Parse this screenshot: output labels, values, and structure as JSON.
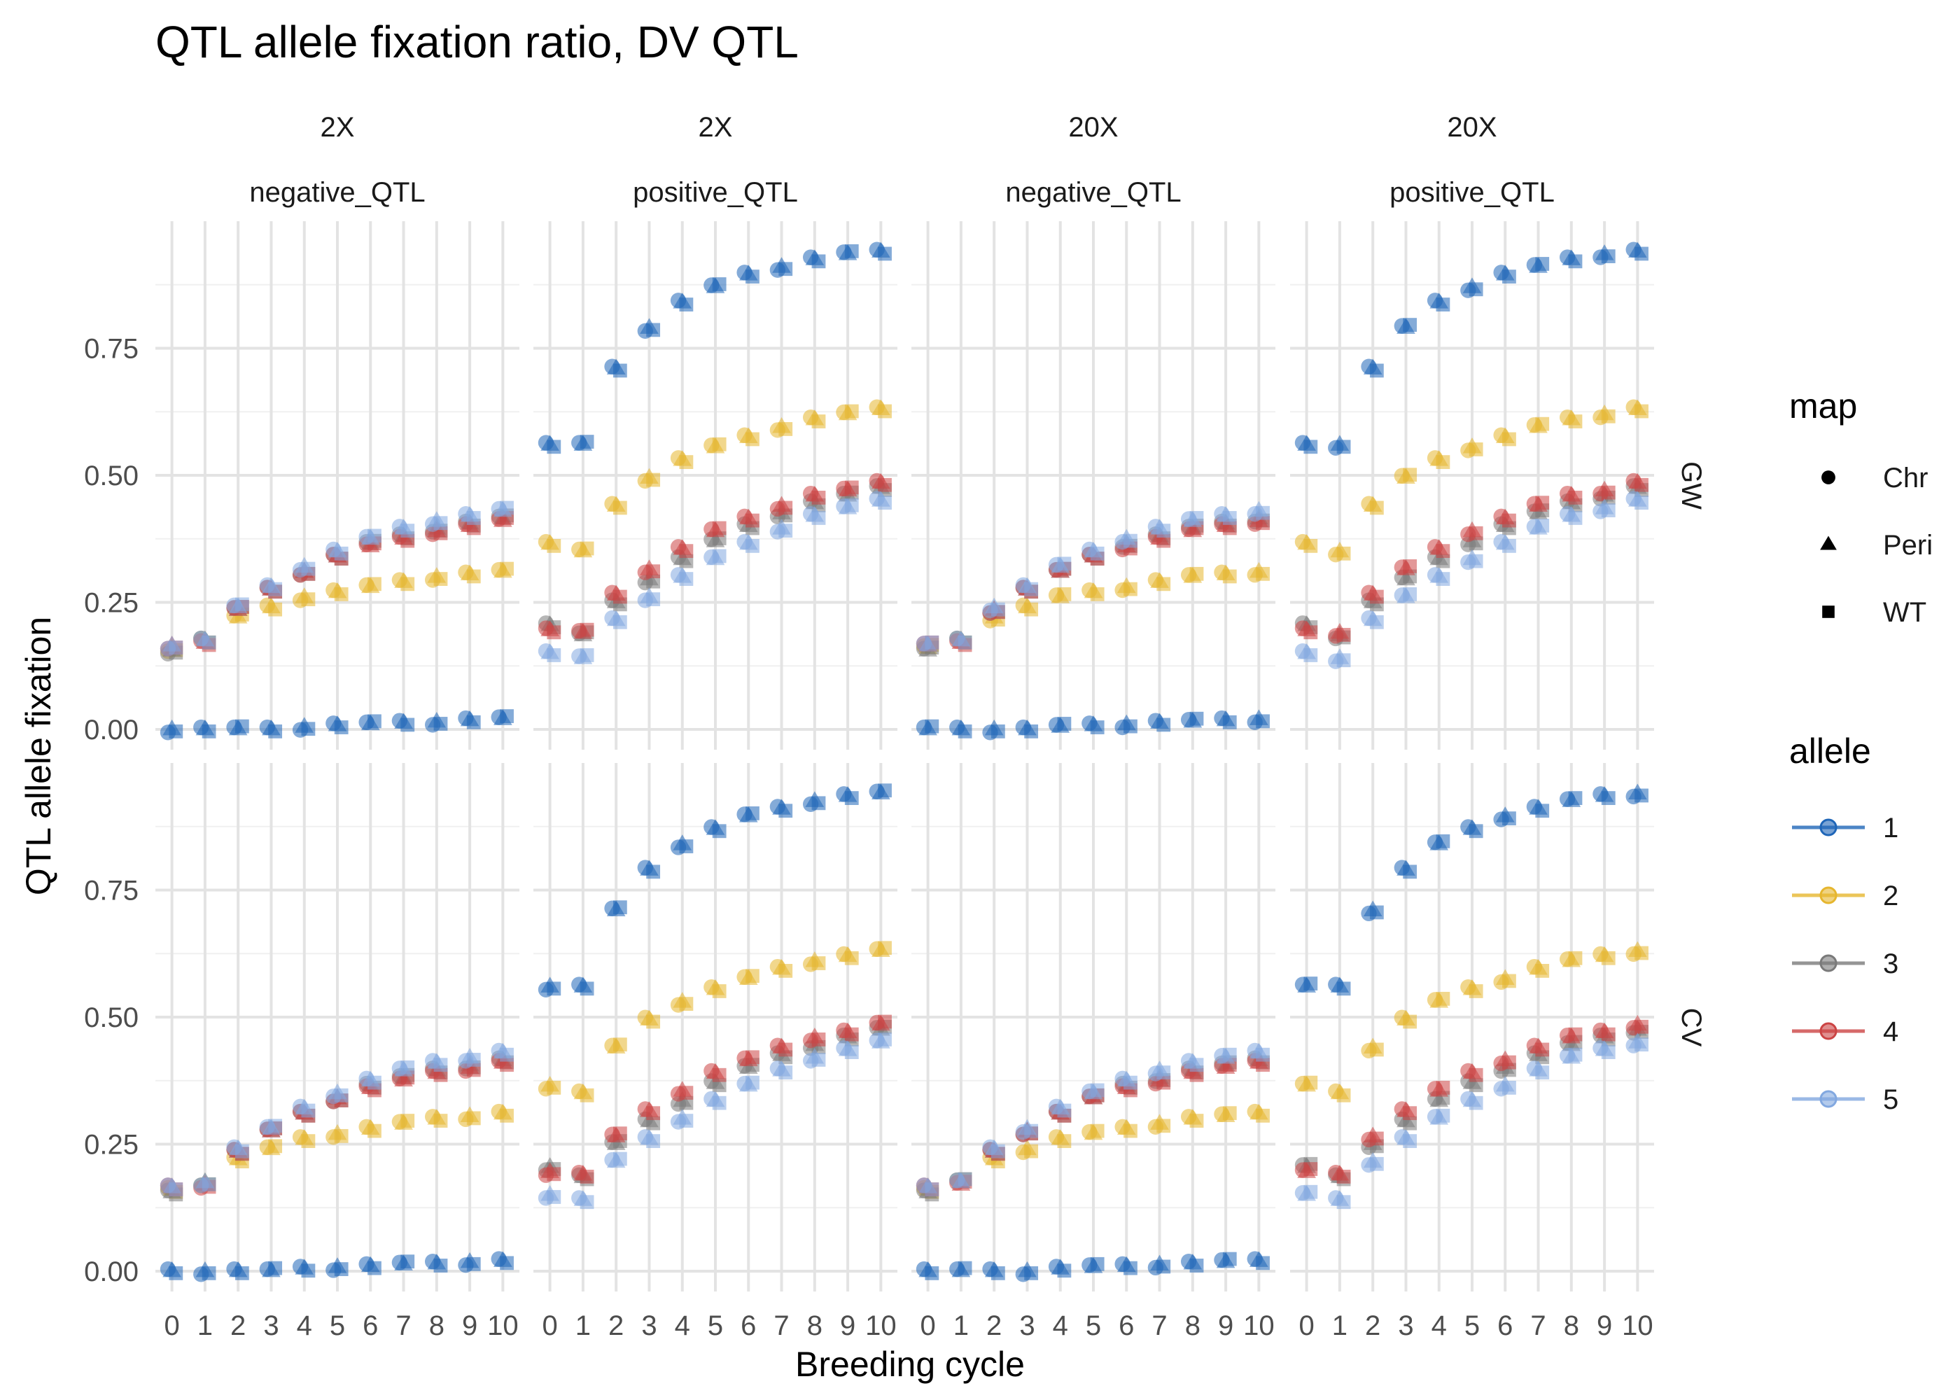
{
  "chart_data": {
    "type": "scatter",
    "title": "QTL allele fixation ratio, DV QTL",
    "xlabel": "Breeding cycle",
    "ylabel": "QTL allele fixation",
    "x_ticks": [
      "0",
      "1",
      "2",
      "3",
      "4",
      "5",
      "6",
      "7",
      "8",
      "9",
      "10"
    ],
    "y_ticks": [
      "0.00",
      "0.25",
      "0.50",
      "0.75"
    ],
    "xlim": [
      -0.5,
      10.5
    ],
    "ylim": [
      -0.04,
      1.0
    ],
    "grid": true,
    "legend_position": "right",
    "column_strips": [
      [
        "2X",
        "negative_QTL"
      ],
      [
        "2X",
        "positive_QTL"
      ],
      [
        "20X",
        "negative_QTL"
      ],
      [
        "20X",
        "positive_QTL"
      ]
    ],
    "row_strips": [
      "GW",
      "CV"
    ],
    "legend_map": {
      "title": "map",
      "items": [
        {
          "label": "Chr",
          "shape": "circle"
        },
        {
          "label": "Peri",
          "shape": "triangle"
        },
        {
          "label": "WT",
          "shape": "square"
        }
      ]
    },
    "legend_allele": {
      "title": "allele",
      "items": [
        {
          "label": "1",
          "color": "#1F66B8"
        },
        {
          "label": "2",
          "color": "#E6B62E"
        },
        {
          "label": "3",
          "color": "#7A7A7A"
        },
        {
          "label": "4",
          "color": "#CC4444"
        },
        {
          "label": "5",
          "color": "#82A8E0"
        }
      ]
    },
    "x": [
      0,
      1,
      2,
      3,
      4,
      5,
      6,
      7,
      8,
      9,
      10
    ],
    "series_by_panel": {
      "negative_QTL": {
        "1": [
          0.0,
          0.0,
          0.0,
          0.0,
          0.005,
          0.008,
          0.01,
          0.013,
          0.015,
          0.018,
          0.02
        ],
        "2": [
          0.16,
          0.175,
          0.22,
          0.24,
          0.26,
          0.27,
          0.28,
          0.29,
          0.3,
          0.305,
          0.31
        ],
        "3": [
          0.155,
          0.175,
          0.235,
          0.275,
          0.31,
          0.34,
          0.365,
          0.38,
          0.395,
          0.405,
          0.415
        ],
        "4": [
          0.165,
          0.17,
          0.235,
          0.275,
          0.31,
          0.34,
          0.36,
          0.375,
          0.39,
          0.4,
          0.41
        ],
        "5": [
          0.165,
          0.175,
          0.24,
          0.28,
          0.32,
          0.35,
          0.375,
          0.395,
          0.41,
          0.42,
          0.43
        ]
      },
      "positive_QTL": {
        "1": [
          0.56,
          0.56,
          0.71,
          0.79,
          0.84,
          0.87,
          0.895,
          0.91,
          0.925,
          0.935,
          0.94
        ],
        "2": [
          0.365,
          0.35,
          0.44,
          0.495,
          0.53,
          0.555,
          0.575,
          0.595,
          0.61,
          0.62,
          0.63
        ],
        "3": [
          0.205,
          0.185,
          0.25,
          0.295,
          0.335,
          0.37,
          0.4,
          0.425,
          0.445,
          0.46,
          0.475
        ],
        "4": [
          0.195,
          0.19,
          0.265,
          0.315,
          0.355,
          0.39,
          0.415,
          0.44,
          0.46,
          0.47,
          0.485
        ],
        "5": [
          0.15,
          0.14,
          0.215,
          0.26,
          0.3,
          0.335,
          0.365,
          0.395,
          0.42,
          0.435,
          0.45
        ]
      }
    }
  }
}
